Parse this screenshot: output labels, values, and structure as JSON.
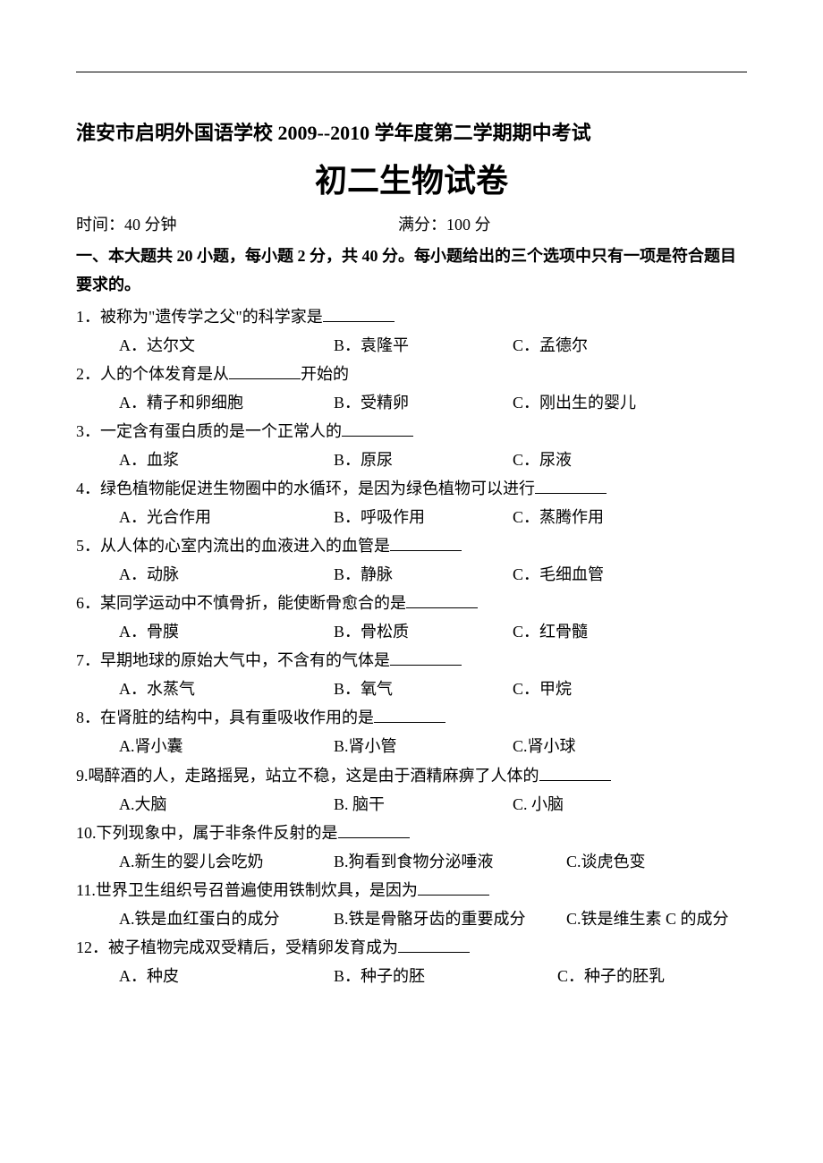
{
  "school_line": "淮安市启明外国语学校 2009--2010 学年度第二学期期中考试",
  "paper_title": "初二生物试卷",
  "time_label": "时间：40 分钟",
  "score_label": "满分：100 分",
  "section1": "一、本大题共 20 小题，每小题 2 分，共 40 分。每小题给出的三个选项中只有一项是符合题目要求的。",
  "questions": [
    {
      "num": "1．",
      "text": "被称为\"遗传学之父\"的科学家是",
      "opts": {
        "a": "A．达尔文",
        "b": "B．袁隆平",
        "c": "C．孟德尔"
      },
      "layout": "three-col"
    },
    {
      "num": "2．",
      "text": "人的个体发育是从",
      "suffix": "开始的",
      "opts": {
        "a": "A．精子和卵细胞",
        "b": "B．受精卵",
        "c": "C．刚出生的婴儿"
      },
      "layout": "three-col"
    },
    {
      "num": "3．",
      "text": "一定含有蛋白质的是一个正常人的",
      "opts": {
        "a": "A．血浆",
        "b": "B．原尿",
        "c": "C．尿液"
      },
      "layout": "three-col"
    },
    {
      "num": "4．",
      "text": "绿色植物能促进生物圈中的水循环，是因为绿色植物可以进行",
      "opts": {
        "a": "A．光合作用",
        "b": "B．呼吸作用",
        "c": "C．蒸腾作用"
      },
      "layout": "three-col"
    },
    {
      "num": "5．",
      "text": "从人体的心室内流出的血液进入的血管是",
      "opts": {
        "a": "A．动脉",
        "b": "B．静脉",
        "c": "C．毛细血管"
      },
      "layout": "three-col"
    },
    {
      "num": "6．",
      "text": "某同学运动中不慎骨折，能使断骨愈合的是",
      "opts": {
        "a": "A．骨膜",
        "b": "B．骨松质",
        "c": "C．红骨髓"
      },
      "layout": "three-col"
    },
    {
      "num": "7．",
      "text": "早期地球的原始大气中，不含有的气体是",
      "opts": {
        "a": "A．水蒸气",
        "b": "B．氧气",
        "c": "C．甲烷"
      },
      "layout": "three-col"
    },
    {
      "num": "8．",
      "text": "在肾脏的结构中，具有重吸收作用的是",
      "opts": {
        "a": "A.肾小囊",
        "b": "B.肾小管",
        "c": "C.肾小球"
      },
      "layout": "three-col"
    },
    {
      "num": "9.",
      "text": "喝醉酒的人，走路摇晃，站立不稳，这是由于酒精麻痹了人体的",
      "opts": {
        "a": "A.大脑",
        "b": "B. 脑干",
        "c": "C. 小脑"
      },
      "layout": "three-col"
    },
    {
      "num": "10.",
      "text": "下列现象中，属于非条件反射的是",
      "opts": {
        "a": "A.新生的婴儿会吃奶",
        "b": "B.狗看到食物分泌唾液",
        "c": "C.谈虎色变"
      },
      "layout": "wide"
    },
    {
      "num": "11.",
      "text": "世界卫生组织号召普遍使用铁制炊具，是因为",
      "opts": {
        "a": "A.铁是血红蛋白的成分",
        "b": "B.铁是骨骼牙齿的重要成分",
        "c": "C.铁是维生素 C 的成分"
      },
      "layout": "wide"
    },
    {
      "num": "12．",
      "text": "被子植物完成双受精后，受精卵发育成为",
      "opts": {
        "a": "A．种皮",
        "b": "B．种子的胚",
        "c": "C．种子的胚乳"
      },
      "layout": "three-col-wide"
    }
  ]
}
